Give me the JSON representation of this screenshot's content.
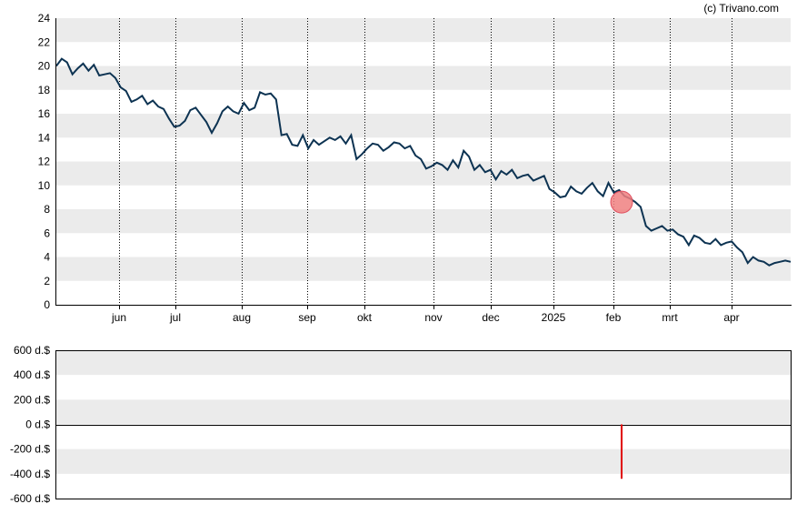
{
  "credit": "(c) Trivano.com",
  "colors": {
    "band": "#ebebeb",
    "price_line": "#0d3352",
    "marker_fill": "#f08080",
    "marker_stroke": "#e05060",
    "volume_bar": "#e00000",
    "axis": "#000000"
  },
  "chart_data": [
    {
      "type": "line",
      "title": "",
      "xlabel": "",
      "ylabel": "",
      "ylim": [
        0,
        24
      ],
      "yticks": [
        "0",
        "2",
        "4",
        "6",
        "8",
        "10",
        "12",
        "14",
        "16",
        "18",
        "20",
        "22",
        "24"
      ],
      "xtick_labels": [
        "jun",
        "jul",
        "aug",
        "sep",
        "okt",
        "nov",
        "dec",
        "2025",
        "feb",
        "mrt",
        "apr"
      ],
      "grid": "alternating horizontal bands, dotted vertical month lines",
      "marker": {
        "x": "feb (start)",
        "y": 8.6
      },
      "series": [
        {
          "values": [
            20.0,
            20.6,
            20.3,
            19.3,
            19.8,
            20.2,
            19.6,
            20.1,
            19.2,
            19.3,
            19.4,
            19.0,
            18.2,
            17.9,
            17.0,
            17.2,
            17.5,
            16.8,
            17.1,
            16.6,
            16.4,
            15.6,
            14.9,
            15.0,
            15.4,
            16.3,
            16.5,
            15.9,
            15.3,
            14.4,
            15.2,
            16.2,
            16.6,
            16.2,
            16.0,
            16.9,
            16.3,
            16.5,
            17.8,
            17.6,
            17.7,
            17.2,
            14.2,
            14.3,
            13.4,
            13.3,
            14.2,
            13.1,
            13.8,
            13.4,
            13.7,
            14.0,
            13.8,
            14.1,
            13.5,
            14.2,
            12.2,
            12.6,
            13.1,
            13.5,
            13.4,
            12.9,
            13.2,
            13.6,
            13.5,
            13.1,
            13.3,
            12.5,
            12.2,
            11.4,
            11.6,
            11.9,
            11.7,
            11.3,
            12.1,
            11.5,
            12.9,
            12.4,
            11.3,
            11.7,
            11.1,
            11.3,
            10.5,
            11.2,
            10.9,
            11.3,
            10.6,
            10.8,
            10.9,
            10.4,
            10.6,
            10.8,
            9.7,
            9.4,
            9.0,
            9.1,
            9.9,
            9.5,
            9.3,
            9.8,
            10.2,
            9.5,
            9.1,
            10.2,
            9.4,
            9.6,
            9.1,
            8.9,
            8.6,
            8.2,
            6.6,
            6.2,
            6.4,
            6.6,
            6.2,
            6.3,
            5.9,
            5.7,
            5.0,
            5.8,
            5.6,
            5.2,
            5.1,
            5.5,
            5.0,
            5.2,
            5.3,
            4.8,
            4.4,
            3.5,
            4.0,
            3.7,
            3.6,
            3.3,
            3.5,
            3.6,
            3.7,
            3.6
          ]
        }
      ]
    },
    {
      "type": "bar",
      "title": "",
      "xlabel": "",
      "ylabel": "",
      "ylim": [
        -600,
        600
      ],
      "yticks": [
        "600 d.$",
        "400 d.$",
        "200 d.$",
        "0 d.$",
        "-200 d.$",
        "-400 d.$",
        "-600 d.$"
      ],
      "series": [
        {
          "points": [
            {
              "x": "feb (start)",
              "value": -440
            }
          ]
        }
      ]
    }
  ]
}
